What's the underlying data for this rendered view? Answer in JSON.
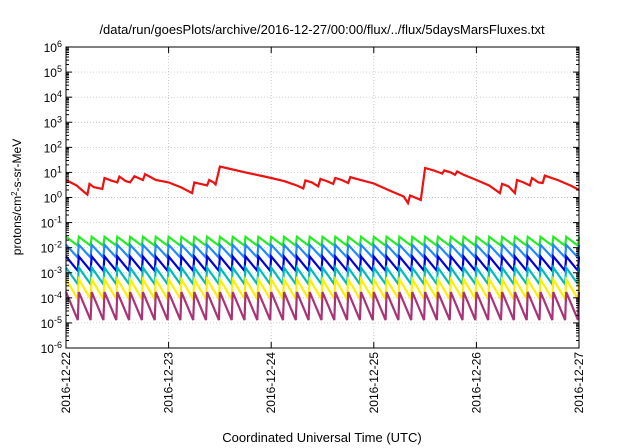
{
  "chart_data": {
    "type": "line",
    "title": "/data/run/goesPlots/archive/2016-12-27/00:00/flux/../flux/5daysMarsFluxes.txt",
    "xlabel": "Coordinated Universal Time (UTC)",
    "ylabel": {
      "prefix": "protons/cm",
      "sup": "2",
      "suffix": "-s-sr-MeV"
    },
    "y_scale": "log",
    "ylim": [
      1e-06,
      1000000.0
    ],
    "y_ticks": [
      {
        "base": "10",
        "exp": "-6",
        "value": 1e-06
      },
      {
        "base": "10",
        "exp": "-5",
        "value": 1e-05
      },
      {
        "base": "10",
        "exp": "-4",
        "value": 0.0001
      },
      {
        "base": "10",
        "exp": "-3",
        "value": 0.001
      },
      {
        "base": "10",
        "exp": "-2",
        "value": 0.01
      },
      {
        "base": "10",
        "exp": "-1",
        "value": 0.1
      },
      {
        "base": "10",
        "exp": "0",
        "value": 1
      },
      {
        "base": "10",
        "exp": "1",
        "value": 10
      },
      {
        "base": "10",
        "exp": "2",
        "value": 100
      },
      {
        "base": "10",
        "exp": "3",
        "value": 1000
      },
      {
        "base": "10",
        "exp": "4",
        "value": 10000
      },
      {
        "base": "10",
        "exp": "5",
        "value": 100000
      },
      {
        "base": "10",
        "exp": "6",
        "value": 1000000
      }
    ],
    "xlim": [
      "2016-12-22",
      "2016-12-27"
    ],
    "x_ticks": [
      "2016-12-22",
      "2016-12-23",
      "2016-12-24",
      "2016-12-25",
      "2016-12-26",
      "2016-12-27"
    ],
    "grid": true,
    "series": [
      {
        "color": "#ee1111",
        "points": [
          [
            "2016-12-22 00:00",
            5
          ],
          [
            "2016-12-22 02:30",
            3
          ],
          [
            "2016-12-22 04:00",
            1.8
          ],
          [
            "2016-12-22 05:00",
            1.3
          ],
          [
            "2016-12-22 05:30",
            3.5
          ],
          [
            "2016-12-22 06:30",
            2.6
          ],
          [
            "2016-12-22 08:30",
            2.2
          ],
          [
            "2016-12-22 09:00",
            6
          ],
          [
            "2016-12-22 10:30",
            4.8
          ],
          [
            "2016-12-22 12:00",
            4
          ],
          [
            "2016-12-22 12:30",
            6.8
          ],
          [
            "2016-12-22 14:00",
            4.5
          ],
          [
            "2016-12-22 15:00",
            4
          ],
          [
            "2016-12-22 16:00",
            7
          ],
          [
            "2016-12-22 18:00",
            5
          ],
          [
            "2016-12-22 18:30",
            8.5
          ],
          [
            "2016-12-22 20:00",
            6.2
          ],
          [
            "2016-12-22 21:00",
            5
          ],
          [
            "2016-12-23 00:00",
            4
          ],
          [
            "2016-12-23 03:00",
            2.5
          ],
          [
            "2016-12-23 05:30",
            1.5
          ],
          [
            "2016-12-23 06:00",
            4
          ],
          [
            "2016-12-23 07:30",
            3.5
          ],
          [
            "2016-12-23 09:00",
            3
          ],
          [
            "2016-12-23 09:30",
            5
          ],
          [
            "2016-12-23 10:30",
            4
          ],
          [
            "2016-12-23 11:00",
            3.3
          ],
          [
            "2016-12-23 12:00",
            17
          ],
          [
            "2016-12-23 13:30",
            15
          ],
          [
            "2016-12-23 18:00",
            10
          ],
          [
            "2016-12-24 00:00",
            6
          ],
          [
            "2016-12-24 03:00",
            4.5
          ],
          [
            "2016-12-24 06:00",
            3
          ],
          [
            "2016-12-24 07:30",
            2.3
          ],
          [
            "2016-12-24 08:00",
            4.8
          ],
          [
            "2016-12-24 09:30",
            4
          ],
          [
            "2016-12-24 11:00",
            2.8
          ],
          [
            "2016-12-24 11:30",
            5.5
          ],
          [
            "2016-12-24 13:00",
            4.5
          ],
          [
            "2016-12-24 14:30",
            3.5
          ],
          [
            "2016-12-24 15:00",
            6
          ],
          [
            "2016-12-24 16:30",
            5
          ],
          [
            "2016-12-24 18:00",
            3.8
          ],
          [
            "2016-12-24 18:30",
            6.5
          ],
          [
            "2016-12-24 20:00",
            5.5
          ],
          [
            "2016-12-25 00:00",
            3.6
          ],
          [
            "2016-12-25 04:00",
            1.8
          ],
          [
            "2016-12-25 07:00",
            1.1
          ],
          [
            "2016-12-25 08:00",
            0.6
          ],
          [
            "2016-12-25 08:30",
            1.2
          ],
          [
            "2016-12-25 11:00",
            0.8
          ],
          [
            "2016-12-25 12:00",
            15
          ],
          [
            "2016-12-25 14:00",
            12
          ],
          [
            "2016-12-25 16:00",
            9
          ],
          [
            "2016-12-25 16:30",
            12
          ],
          [
            "2016-12-25 18:00",
            10
          ],
          [
            "2016-12-25 19:00",
            8
          ],
          [
            "2016-12-25 19:30",
            11
          ],
          [
            "2016-12-25 21:00",
            8
          ],
          [
            "2016-12-26 00:00",
            5
          ],
          [
            "2016-12-26 03:00",
            3
          ],
          [
            "2016-12-26 05:30",
            1.5
          ],
          [
            "2016-12-26 06:00",
            3.5
          ],
          [
            "2016-12-26 07:30",
            2.8
          ],
          [
            "2016-12-26 09:00",
            1.5
          ],
          [
            "2016-12-26 09:30",
            5
          ],
          [
            "2016-12-26 11:00",
            4
          ],
          [
            "2016-12-26 12:30",
            3
          ],
          [
            "2016-12-26 13:00",
            6
          ],
          [
            "2016-12-26 14:30",
            4
          ],
          [
            "2016-12-26 15:30",
            3.8
          ],
          [
            "2016-12-26 16:00",
            7.5
          ],
          [
            "2016-12-26 19:00",
            5
          ],
          [
            "2016-12-26 22:00",
            3
          ],
          [
            "2016-12-27 00:00",
            2
          ]
        ]
      },
      {
        "color": "#22ee22",
        "teeth": {
          "count": 40,
          "peak": 0.027,
          "trough": 0.012
        }
      },
      {
        "color": "#2288ff",
        "teeth": {
          "count": 40,
          "peak": 0.013,
          "trough": 0.004
        }
      },
      {
        "color": "#0000dd",
        "teeth": {
          "count": 40,
          "peak": 0.0045,
          "trough": 0.0012
        }
      },
      {
        "color": "#00bbbb",
        "teeth": {
          "count": 40,
          "peak": 0.0016,
          "trough": 0.00035
        }
      },
      {
        "color": "#ffee00",
        "teeth": {
          "count": 40,
          "peak": 0.00055,
          "trough": 9e-05
        }
      },
      {
        "color": "#aa3377",
        "teeth": {
          "count": 40,
          "peak": 0.00017,
          "trough": 1.3e-05
        }
      }
    ]
  }
}
